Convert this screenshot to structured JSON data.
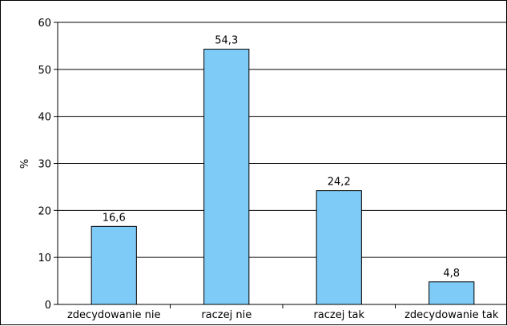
{
  "chart_data": {
    "type": "bar",
    "categories": [
      "zdecydowanie nie",
      "raczej nie",
      "raczej tak",
      "zdecydowanie tak"
    ],
    "values": [
      16.6,
      54.3,
      24.2,
      4.8
    ],
    "value_labels": [
      "16,6",
      "54,3",
      "24,2",
      "4,8"
    ],
    "title": "",
    "xlabel": "",
    "ylabel": "%",
    "ylim": [
      0,
      60
    ],
    "yticks": [
      0,
      10,
      20,
      30,
      40,
      50,
      60
    ],
    "ytick_labels": [
      "0",
      "10",
      "20",
      "30",
      "40",
      "50",
      "60"
    ],
    "grid": true,
    "legend": "none",
    "colors": {
      "bar_fill": "#7ECBF7",
      "bar_stroke": "#000000",
      "gridline": "#000000",
      "axis": "#000000"
    }
  }
}
